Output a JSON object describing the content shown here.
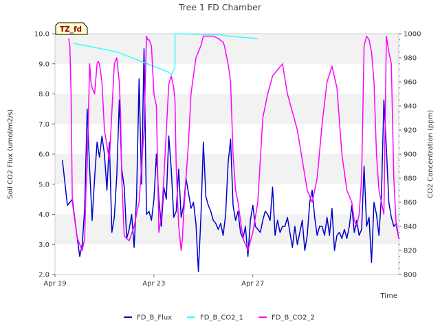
{
  "chart_data": {
    "type": "line",
    "title": "Tree 1 FD Chamber",
    "badge": "TZ_fd",
    "xlabel": "Time",
    "ylabel_left": "Soil CO2 Flux (umol/m2/s)",
    "ylabel_right": "CO2 Concentration (ppm)",
    "x_range_days": [
      0,
      13.9
    ],
    "x_ticks": [
      {
        "day": 0,
        "label": "Apr 19"
      },
      {
        "day": 4,
        "label": "Apr 23"
      },
      {
        "day": 8,
        "label": "Apr 27"
      }
    ],
    "ylim_left": [
      2.0,
      10.0
    ],
    "ylim_right": [
      800,
      1000
    ],
    "left_ticks": [
      2.0,
      3.0,
      4.0,
      5.0,
      6.0,
      7.0,
      8.0,
      9.0,
      10.0
    ],
    "right_ticks": [
      800,
      820,
      840,
      860,
      880,
      900,
      920,
      940,
      960,
      980,
      1000
    ],
    "grid": "horizontal bands",
    "legend_position": "bottom",
    "colors": {
      "flux": "#0000cc",
      "co2_1": "#33ffff",
      "co2_2": "#ff00ff",
      "band": "#f2f2f2",
      "badge_bg": "#ffffcc"
    },
    "series": [
      {
        "name": "FD_B_Flux",
        "axis": "left",
        "color": "#0000cc",
        "x": [
          0.3,
          0.5,
          0.7,
          0.9,
          1.0,
          1.1,
          1.2,
          1.3,
          1.4,
          1.5,
          1.6,
          1.7,
          1.8,
          1.9,
          2.0,
          2.1,
          2.2,
          2.3,
          2.4,
          2.5,
          2.6,
          2.7,
          2.8,
          2.9,
          3.0,
          3.1,
          3.2,
          3.3,
          3.4,
          3.5,
          3.6,
          3.7,
          3.8,
          3.9,
          4.0,
          4.1,
          4.2,
          4.3,
          4.4,
          4.5,
          4.6,
          4.7,
          4.8,
          4.9,
          5.0,
          5.1,
          5.2,
          5.3,
          5.4,
          5.5,
          5.6,
          5.7,
          5.8,
          5.9,
          6.0,
          6.1,
          6.2,
          6.3,
          6.4,
          6.5,
          6.6,
          6.7,
          6.8,
          6.9,
          7.0,
          7.1,
          7.2,
          7.3,
          7.4,
          7.5,
          7.6,
          7.7,
          7.8,
          7.9,
          8.0,
          8.1,
          8.2,
          8.3,
          8.4,
          8.5,
          8.6,
          8.7,
          8.8,
          8.9,
          9.0,
          9.1,
          9.2,
          9.3,
          9.4,
          9.5,
          9.6,
          9.7,
          9.8,
          9.9,
          10.0,
          10.1,
          10.2,
          10.3,
          10.4,
          10.5,
          10.6,
          10.7,
          10.8,
          10.9,
          11.0,
          11.1,
          11.2,
          11.3,
          11.4,
          11.5,
          11.6,
          11.7,
          11.8,
          11.9,
          12.0,
          12.1,
          12.2,
          12.3,
          12.4,
          12.5,
          12.6,
          12.7,
          12.8,
          12.9,
          13.0,
          13.1,
          13.2,
          13.3,
          13.4,
          13.5,
          13.6,
          13.7,
          13.8,
          13.9
        ],
        "y": [
          5.8,
          4.3,
          4.5,
          3.2,
          2.6,
          3.0,
          4.2,
          7.5,
          5.5,
          3.8,
          5.2,
          6.4,
          5.9,
          6.6,
          6.0,
          4.8,
          6.4,
          3.4,
          3.9,
          5.3,
          7.8,
          5.5,
          4.9,
          3.2,
          3.5,
          4.0,
          2.9,
          4.6,
          8.5,
          5.0,
          9.5,
          4.0,
          4.1,
          3.8,
          4.5,
          6.0,
          4.5,
          3.6,
          4.9,
          4.5,
          6.6,
          5.5,
          3.9,
          4.1,
          5.5,
          3.9,
          4.3,
          5.2,
          4.7,
          4.2,
          4.4,
          3.7,
          2.1,
          3.9,
          6.4,
          4.6,
          4.3,
          4.1,
          3.8,
          3.7,
          3.5,
          3.7,
          3.3,
          4.0,
          5.7,
          6.5,
          4.3,
          3.8,
          4.1,
          3.4,
          3.2,
          3.6,
          2.6,
          3.8,
          4.3,
          3.6,
          3.5,
          3.4,
          3.8,
          4.1,
          4.0,
          3.8,
          4.9,
          3.3,
          3.8,
          3.4,
          3.6,
          3.6,
          3.9,
          3.4,
          2.9,
          3.6,
          3.0,
          3.4,
          3.8,
          2.8,
          3.3,
          4.4,
          4.8,
          3.9,
          3.3,
          3.6,
          3.6,
          3.3,
          3.9,
          3.3,
          4.2,
          2.8,
          3.3,
          3.4,
          3.2,
          3.5,
          3.2,
          3.6,
          4.3,
          3.4,
          3.8,
          3.3,
          3.5,
          5.6,
          3.6,
          3.9,
          2.4,
          4.4,
          4.0,
          3.3,
          4.6,
          7.8,
          6.2,
          4.4,
          3.9,
          3.6,
          3.7,
          3.2
        ],
        "note_points": 0
      },
      {
        "name": "FD_B_CO2_1",
        "axis": "right",
        "color": "#33ffff",
        "x": [
          0.75,
          2.5,
          4.6,
          4.7,
          4.85,
          4.85,
          6.75,
          7.0,
          8.2
        ],
        "y": [
          992,
          985,
          968,
          966,
          972,
          1000,
          999,
          998,
          996
        ]
      },
      {
        "name": "FD_B_CO2_2",
        "axis": "right",
        "color": "#ff00ff",
        "x": [
          0.55,
          0.6,
          0.65,
          0.7,
          0.8,
          0.9,
          1.0,
          1.1,
          1.2,
          1.25,
          1.3,
          1.4,
          1.45,
          1.5,
          1.6,
          1.7,
          1.75,
          1.8,
          1.9,
          2.0,
          2.2,
          2.4,
          2.5,
          2.6,
          2.65,
          2.7,
          2.8,
          3.0,
          3.2,
          3.4,
          3.6,
          3.7,
          3.75,
          3.8,
          3.9,
          4.0,
          4.1,
          4.2,
          4.3,
          4.4,
          4.6,
          4.7,
          4.75,
          4.8,
          4.85,
          4.9,
          5.0,
          5.1,
          5.15,
          5.2,
          5.3,
          5.4,
          5.5,
          5.6,
          5.7,
          5.8,
          5.9,
          6.0,
          6.2,
          6.4,
          6.6,
          6.8,
          6.85,
          6.9,
          7.0,
          7.1,
          7.2,
          7.3,
          7.4,
          7.6,
          7.8,
          8.0,
          8.2,
          8.4,
          8.6,
          8.8,
          9.0,
          9.2,
          9.4,
          9.6,
          9.8,
          10.0,
          10.2,
          10.4,
          10.6,
          10.8,
          11.0,
          11.2,
          11.4,
          11.6,
          11.8,
          12.0,
          12.1,
          12.2,
          12.3,
          12.4,
          12.5,
          12.6,
          12.7,
          12.8,
          12.9,
          13.0,
          13.1,
          13.2,
          13.3,
          13.4,
          13.5,
          13.6,
          13.7,
          13.8,
          13.9
        ],
        "y": [
          996,
          990,
          950,
          860,
          845,
          830,
          825,
          820,
          830,
          870,
          890,
          975,
          960,
          955,
          950,
          975,
          977,
          975,
          960,
          920,
          895,
          975,
          980,
          960,
          935,
          880,
          832,
          828,
          840,
          860,
          920,
          998,
          995,
          995,
          990,
          950,
          940,
          835,
          848,
          880,
          958,
          965,
          960,
          955,
          945,
          890,
          840,
          820,
          830,
          850,
          880,
          910,
          950,
          965,
          980,
          985,
          990,
          998,
          998,
          998,
          996,
          993,
          990,
          985,
          975,
          960,
          900,
          870,
          860,
          830,
          820,
          835,
          860,
          930,
          950,
          965,
          970,
          975,
          950,
          935,
          920,
          895,
          870,
          860,
          880,
          925,
          960,
          973,
          955,
          900,
          870,
          860,
          845,
          840,
          850,
          880,
          990,
          998,
          995,
          985,
          960,
          900,
          870,
          860,
          850,
          998,
          985,
          975,
          880,
          840,
          830
        ]
      }
    ]
  }
}
